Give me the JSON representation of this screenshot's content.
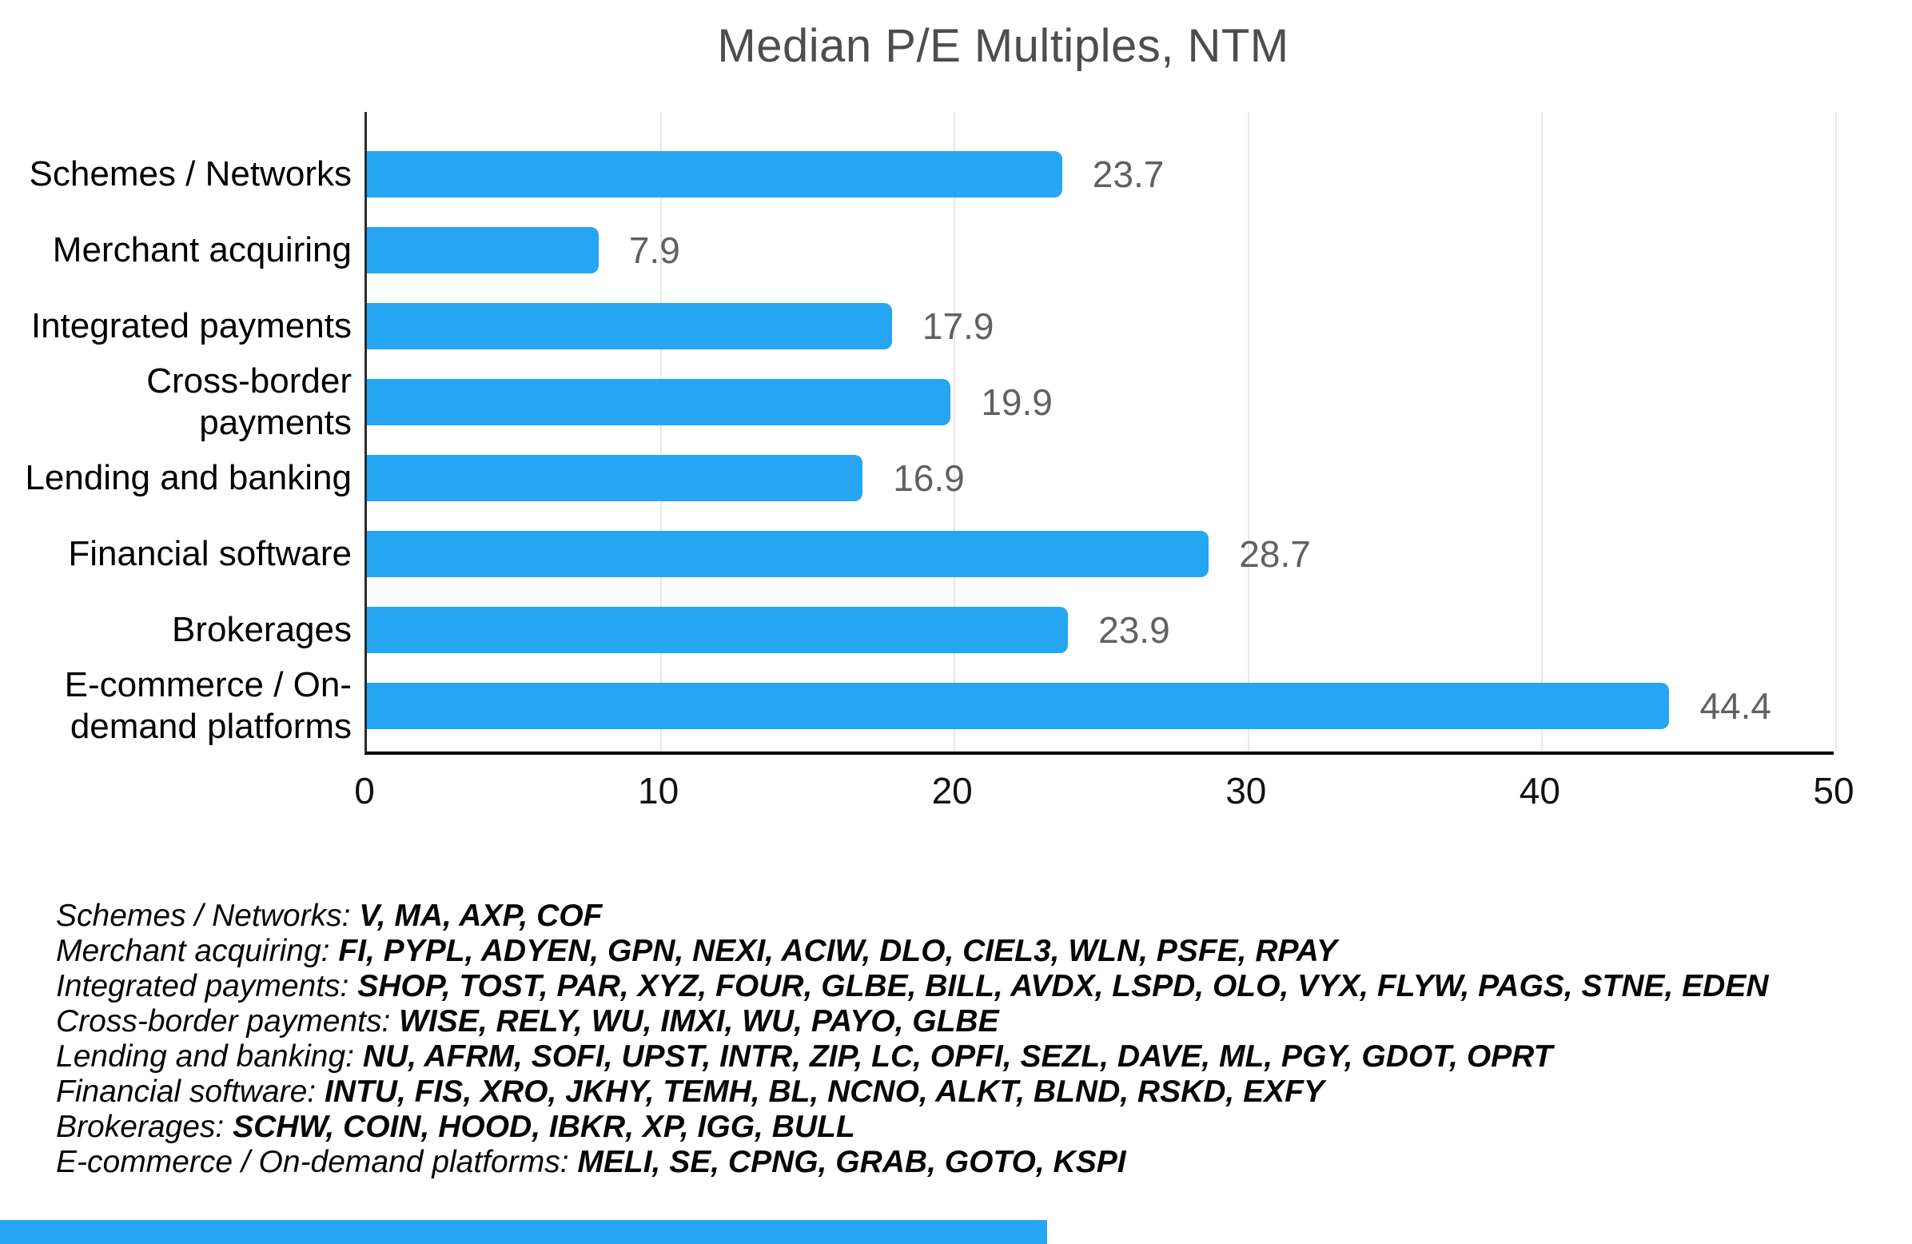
{
  "title": "Median P/E Multiples, NTM",
  "chart_data": {
    "type": "bar",
    "orientation": "horizontal",
    "title": "Median P/E Multiples, NTM",
    "categories": [
      "Schemes / Networks",
      "Merchant acquiring",
      "Integrated payments",
      "Cross-border payments",
      "Lending and banking",
      "Financial software",
      "Brokerages",
      "E-commerce / On-demand platforms"
    ],
    "values": [
      23.7,
      7.9,
      17.9,
      19.9,
      16.9,
      28.7,
      23.9,
      44.4
    ],
    "xlabel": "",
    "ylabel": "",
    "xlim": [
      0,
      50
    ],
    "xticks": [
      0,
      10,
      20,
      30,
      40,
      50
    ],
    "grid": true,
    "legend_position": "none",
    "bar_color": "#26a5f3",
    "value_label_color": "#616161",
    "title_color": "#4d4d4d"
  },
  "legend": {
    "entries": [
      {
        "label": "Schemes / Networks",
        "separator": ": ",
        "tickers": "V, MA, AXP, COF"
      },
      {
        "label": "Merchant acquiring",
        "separator": ": ",
        "tickers": "FI, PYPL, ADYEN, GPN, NEXI, ACIW, DLO, CIEL3, WLN, PSFE, RPAY"
      },
      {
        "label": "Integrated payments",
        "separator": ": ",
        "tickers": "SHOP, TOST, PAR, XYZ, FOUR, GLBE, BILL, AVDX, LSPD, OLO, VYX, FLYW, PAGS, STNE, EDEN"
      },
      {
        "label": "Cross-border payments",
        "separator": ": ",
        "tickers": "WISE, RELY, WU, IMXI, WU, PAYO, GLBE"
      },
      {
        "label": "Lending and banking",
        "separator": ": ",
        "tickers": "NU, AFRM, SOFI, UPST, INTR, ZIP, LC, OPFI, SEZL, DAVE, ML, PGY, GDOT, OPRT"
      },
      {
        "label": "Financial software",
        "separator": ": ",
        "tickers": "INTU, FIS, XRO, JKHY, TEMH, BL, NCNO, ALKT, BLND, RSKD, EXFY"
      },
      {
        "label": "Brokerages",
        "separator": ": ",
        "tickers": "SCHW, COIN, HOOD, IBKR, XP, IGG, BULL"
      },
      {
        "label": "E-commerce / On-demand platforms",
        "separator": ": ",
        "tickers": "MELI, SE, CPNG, GRAB, GOTO, KSPI"
      }
    ]
  }
}
